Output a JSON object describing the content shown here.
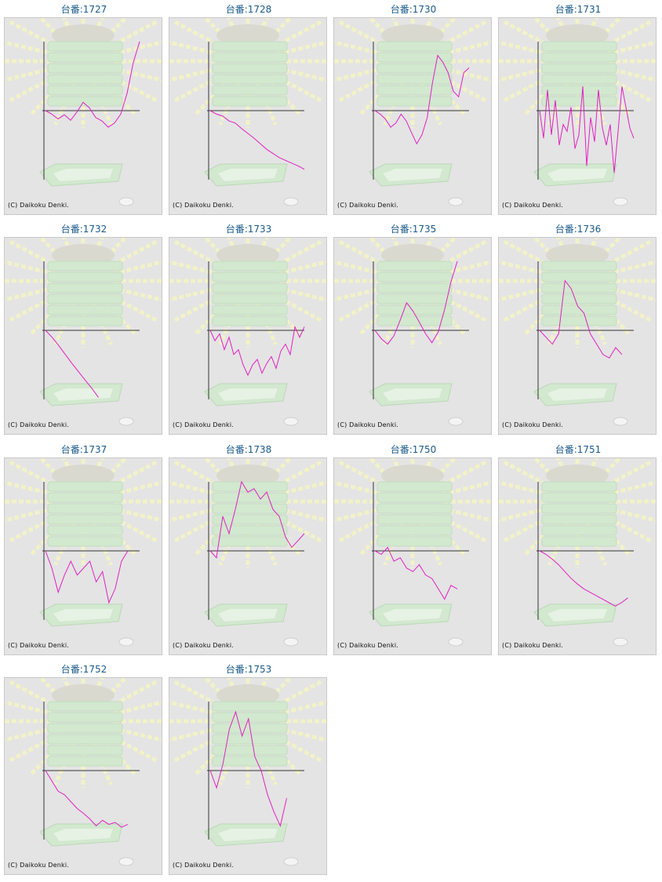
{
  "colors": {
    "line": "#e020c0",
    "axis": "#333333",
    "title": "#1a5a8a",
    "background": "#e4e4e4"
  },
  "grid_label_prefix": "台番:",
  "copyright": "(C) Daikoku Denki.",
  "chart_data": [
    {
      "type": "line",
      "title": "台番:1727",
      "xlim": [
        0,
        120
      ],
      "ylim": [
        -1,
        1
      ],
      "y": [
        0,
        -0.05,
        -0.12,
        -0.06,
        -0.14,
        -0.02,
        0.12,
        0.04,
        -0.1,
        -0.15,
        -0.24,
        -0.18,
        -0.05,
        0.25,
        0.7,
        1.0
      ]
    },
    {
      "type": "line",
      "title": "台番:1728",
      "xlim": [
        0,
        120
      ],
      "ylim": [
        -1,
        1
      ],
      "y": [
        0,
        -0.05,
        -0.08,
        -0.15,
        -0.18,
        -0.26,
        -0.33,
        -0.4,
        -0.48,
        -0.56,
        -0.62,
        -0.68,
        -0.72,
        -0.76,
        -0.8,
        -0.85
      ]
    },
    {
      "type": "line",
      "title": "台番:1730",
      "xlim": [
        0,
        120
      ],
      "ylim": [
        -1,
        1
      ],
      "y": [
        0,
        -0.05,
        -0.12,
        -0.24,
        -0.18,
        -0.05,
        -0.15,
        -0.32,
        -0.48,
        -0.35,
        -0.1,
        0.4,
        0.8,
        0.7,
        0.55,
        0.28,
        0.2,
        0.55,
        0.62
      ]
    },
    {
      "type": "line",
      "title": "台番:1731",
      "xlim": [
        0,
        120
      ],
      "ylim": [
        -1,
        1
      ],
      "y": [
        0,
        -0.4,
        0.3,
        -0.35,
        0.15,
        -0.5,
        -0.2,
        -0.3,
        0.05,
        -0.55,
        -0.35,
        0.35,
        -0.8,
        -0.1,
        -0.45,
        0.3,
        -0.25,
        -0.5,
        -0.2,
        -0.9,
        -0.3,
        0.35,
        0.05,
        -0.25,
        -0.4
      ]
    },
    {
      "type": "line",
      "title": "台番:1732",
      "xlim": [
        0,
        120
      ],
      "ylim": [
        -1,
        1
      ],
      "y": [
        0,
        -0.1,
        -0.22,
        -0.35,
        -0.48,
        -0.6,
        -0.72,
        -0.84,
        -0.97
      ]
    },
    {
      "type": "line",
      "title": "台番:1733",
      "xlim": [
        0,
        120
      ],
      "ylim": [
        -1,
        1
      ],
      "y": [
        0,
        -0.15,
        -0.05,
        -0.28,
        -0.1,
        -0.35,
        -0.28,
        -0.5,
        -0.65,
        -0.5,
        -0.42,
        -0.62,
        -0.48,
        -0.38,
        -0.55,
        -0.3,
        -0.2,
        -0.35,
        0.05,
        -0.1,
        0.05
      ]
    },
    {
      "type": "line",
      "title": "台番:1735",
      "xlim": [
        0,
        120
      ],
      "ylim": [
        -1,
        1
      ],
      "y": [
        0,
        -0.12,
        -0.2,
        -0.08,
        0.15,
        0.4,
        0.28,
        0.12,
        -0.05,
        -0.18,
        -0.02,
        0.3,
        0.7,
        1.0
      ]
    },
    {
      "type": "line",
      "title": "台番:1736",
      "xlim": [
        0,
        120
      ],
      "ylim": [
        -1,
        1
      ],
      "y": [
        0,
        -0.1,
        -0.2,
        -0.05,
        0.72,
        0.6,
        0.35,
        0.25,
        -0.05,
        -0.2,
        -0.35,
        -0.4,
        -0.25,
        -0.35
      ]
    },
    {
      "type": "line",
      "title": "台番:1737",
      "xlim": [
        0,
        120
      ],
      "ylim": [
        -1,
        1
      ],
      "y": [
        0,
        -0.25,
        -0.6,
        -0.35,
        -0.15,
        -0.35,
        -0.25,
        -0.15,
        -0.45,
        -0.3,
        -0.75,
        -0.55,
        -0.15,
        0.0
      ]
    },
    {
      "type": "line",
      "title": "台番:1738",
      "xlim": [
        0,
        120
      ],
      "ylim": [
        -1,
        1
      ],
      "y": [
        0,
        -0.1,
        0.5,
        0.25,
        0.6,
        1.0,
        0.85,
        0.9,
        0.75,
        0.85,
        0.6,
        0.5,
        0.2,
        0.05,
        0.15,
        0.25
      ]
    },
    {
      "type": "line",
      "title": "台番:1750",
      "xlim": [
        0,
        120
      ],
      "ylim": [
        -1,
        1
      ],
      "y": [
        0,
        -0.05,
        0.05,
        -0.15,
        -0.1,
        -0.25,
        -0.3,
        -0.2,
        -0.35,
        -0.4,
        -0.55,
        -0.7,
        -0.5,
        -0.55
      ]
    },
    {
      "type": "line",
      "title": "台番:1751",
      "xlim": [
        0,
        120
      ],
      "ylim": [
        -1,
        1
      ],
      "y": [
        0,
        -0.05,
        -0.12,
        -0.2,
        -0.3,
        -0.4,
        -0.48,
        -0.55,
        -0.6,
        -0.65,
        -0.7,
        -0.75,
        -0.8,
        -0.75,
        -0.68
      ]
    },
    {
      "type": "line",
      "title": "台番:1752",
      "xlim": [
        0,
        120
      ],
      "ylim": [
        -1,
        1
      ],
      "y": [
        0,
        -0.15,
        -0.3,
        -0.35,
        -0.45,
        -0.55,
        -0.62,
        -0.7,
        -0.8,
        -0.72,
        -0.78,
        -0.75,
        -0.82,
        -0.78
      ]
    },
    {
      "type": "line",
      "title": "台番:1753",
      "xlim": [
        0,
        120
      ],
      "ylim": [
        -1,
        1
      ],
      "y": [
        0,
        -0.25,
        0.1,
        0.6,
        0.85,
        0.5,
        0.75,
        0.2,
        0.0,
        -0.35,
        -0.6,
        -0.8,
        -0.4
      ]
    }
  ]
}
